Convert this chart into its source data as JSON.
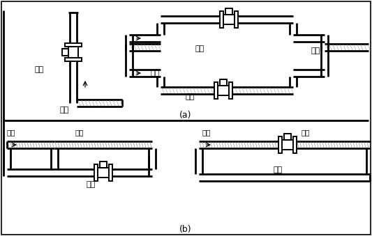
{
  "bg_color": "#ffffff",
  "lc": "#000000",
  "lw": 2.0,
  "flw": 1.4,
  "g": 5,
  "fs": 8,
  "label_a": "(a)",
  "label_b": "(b)",
  "correct": "正确",
  "wrong": "错误",
  "liquid": "液体",
  "bubble": "气泡"
}
